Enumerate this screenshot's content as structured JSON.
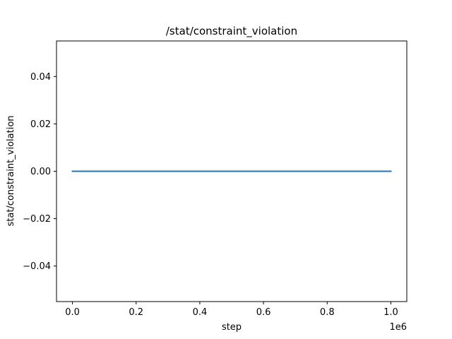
{
  "chart_data": {
    "type": "line",
    "title": "/stat/constraint_violation",
    "xlabel": "step",
    "ylabel": "stat/constraint_violation",
    "x_offset_label": "1e6",
    "xlim": [
      -0.05,
      1.05
    ],
    "ylim": [
      -0.055,
      0.055
    ],
    "x_ticks": [
      0.0,
      0.2,
      0.4,
      0.6,
      0.8,
      1.0
    ],
    "x_tick_labels": [
      "0.0",
      "0.2",
      "0.4",
      "0.6",
      "0.8",
      "1.0"
    ],
    "y_ticks": [
      0.04,
      0.02,
      0.0,
      -0.02,
      -0.04
    ],
    "y_tick_labels": [
      "0.04",
      "0.02",
      "0.00",
      "−0.02",
      "−0.04"
    ],
    "grid": false,
    "series": [
      {
        "color": "#1f77b4",
        "x": [
          0.0,
          1.0
        ],
        "y": [
          0.0,
          0.0
        ]
      }
    ]
  }
}
